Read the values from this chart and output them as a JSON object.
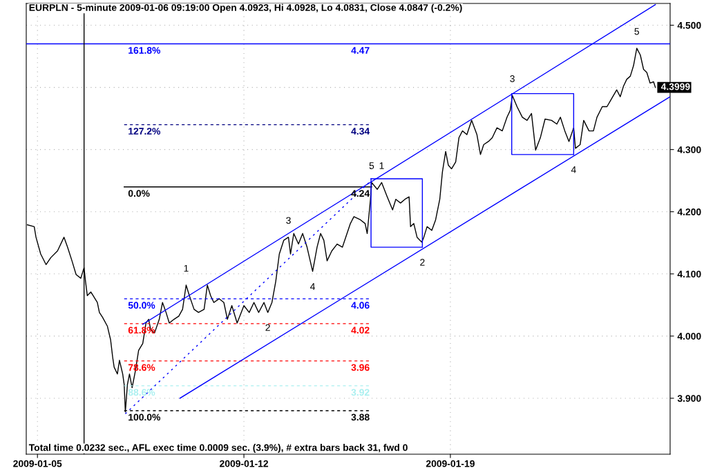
{
  "chart_data": {
    "type": "line",
    "title": "EURPLN - 5-minute 2009-01-06 09:19:00 Open 4.0923, Hi 4.0928, Lo 4.0831, Close 4.0847 (-0.2%)",
    "annotations": [
      "Total time 0.0232 sec., AFL exec time 0.0009 sec. (3.9%), # extra bars back 31, fwd 0",
      {
        "text": "1",
        "x": "2009-01-10T00:58",
        "y": 4.082
      },
      {
        "text": "2",
        "x": "2009-01-12T19:26",
        "y": 4.038
      },
      {
        "text": "3",
        "x": "2009-01-13T12:14",
        "y": 4.159
      },
      {
        "text": "4",
        "x": "2009-01-14T07:55",
        "y": 4.104
      },
      {
        "text": "5",
        "x": "2009-01-16T07:55",
        "y": 4.247
      },
      {
        "text": "1",
        "x": "2009-01-16T16:05",
        "y": 4.247
      },
      {
        "text": "2",
        "x": "2009-01-18T01:12",
        "y": 4.143
      },
      {
        "text": "3",
        "x": "2009-01-21T02:24",
        "y": 4.387
      },
      {
        "text": "4",
        "x": "2009-01-23T04:19",
        "y": 4.292
      },
      {
        "text": "5",
        "x": "2009-01-25T07:41",
        "y": 4.463
      }
    ],
    "xlim": [
      "2009-01-04T14:53",
      "2009-01-26T10:48"
    ],
    "ylim": [
      3.81,
      4.535
    ],
    "xticks": [
      "2009-01-05",
      "2009-01-12",
      "2009-01-19"
    ],
    "yticks": [
      {
        "value": 3.9,
        "label": "3.900"
      },
      {
        "value": 4.0,
        "label": "4.000"
      },
      {
        "value": 4.1,
        "label": "4.100"
      },
      {
        "value": 4.2,
        "label": "4.200"
      },
      {
        "value": 4.3,
        "label": "4.300"
      },
      {
        "value": 4.4,
        "label": null
      },
      {
        "value": 4.5,
        "label": "4.500"
      }
    ],
    "grid": true,
    "marker": "none",
    "line_style": "solid",
    "ref_lines": [
      {
        "axis": "x",
        "value": "2009-01-06T13:55",
        "color": "#000000"
      }
    ],
    "series": [
      {
        "color": "#000000",
        "x": [
          "2009-01-04T15:50",
          "2009-01-04T21:22",
          "2009-01-04T22:48",
          "2009-01-05T02:38",
          "2009-01-05T06:58",
          "2009-01-05T10:48",
          "2009-01-05T16:19",
          "2009-01-05T21:36",
          "2009-01-06T00:29",
          "2009-01-06T04:05",
          "2009-01-06T07:26",
          "2009-01-06T11:17",
          "2009-01-06T13:55",
          "2009-01-06T15:07",
          "2009-01-06T16:34",
          "2009-01-06T19:26",
          "2009-01-07T00:43",
          "2009-01-07T02:24",
          "2009-01-07T05:02",
          "2009-01-07T08:53",
          "2009-01-07T11:31",
          "2009-01-07T13:12",
          "2009-01-07T14:24",
          "2009-01-07T17:02",
          "2009-01-07T18:43",
          "2009-01-07T21:22",
          "2009-01-07T22:34",
          "2009-01-07T23:31",
          "2009-01-08T01:12",
          "2009-01-08T02:53",
          "2009-01-08T05:02",
          "2009-01-08T07:41",
          "2009-01-08T10:19",
          "2009-01-08T13:41",
          "2009-01-08T16:19",
          "2009-01-08T18:29",
          "2009-01-08T20:10",
          "2009-01-08T23:17",
          "2009-01-09T03:07",
          "2009-01-09T05:46",
          "2009-01-09T08:38",
          "2009-01-09T11:17",
          "2009-01-09T15:07",
          "2009-01-09T18:58",
          "2009-01-09T22:05",
          "2009-01-10T00:58",
          "2009-01-10T03:36",
          "2009-01-10T07:26",
          "2009-01-10T11:02",
          "2009-01-10T15:36",
          "2009-01-10T18:14",
          "2009-01-10T20:53",
          "2009-01-10T23:31",
          "2009-01-11T03:50",
          "2009-01-11T07:41",
          "2009-01-11T10:34",
          "2009-01-11T14:10",
          "2009-01-11T18:29",
          "2009-01-12T00:00",
          "2009-01-12T04:19",
          "2009-01-12T08:10",
          "2009-01-12T12:00",
          "2009-01-12T16:19",
          "2009-01-12T19:26",
          "2009-01-12T22:48",
          "2009-01-13T01:55",
          "2009-01-13T04:48",
          "2009-01-13T08:24",
          "2009-01-13T12:14",
          "2009-01-13T13:55",
          "2009-01-13T16:34",
          "2009-01-13T20:24",
          "2009-01-13T23:46",
          "2009-01-14T03:22",
          "2009-01-14T07:55",
          "2009-01-14T11:31",
          "2009-01-14T14:24",
          "2009-01-14T17:02",
          "2009-01-14T19:41",
          "2009-01-14T23:31",
          "2009-01-15T03:50",
          "2009-01-15T08:10",
          "2009-01-15T14:38",
          "2009-01-15T17:31",
          "2009-01-15T22:48",
          "2009-01-16T02:38",
          "2009-01-16T04:19",
          "2009-01-16T06:58",
          "2009-01-16T07:55",
          "2009-01-16T12:29",
          "2009-01-16T16:05",
          "2009-01-16T20:24",
          "2009-01-17T00:58",
          "2009-01-17T03:36",
          "2009-01-17T07:26",
          "2009-01-17T11:02",
          "2009-01-17T14:24",
          "2009-01-17T15:36",
          "2009-01-17T18:14",
          "2009-01-17T20:53",
          "2009-01-18T00:43",
          "2009-01-18T02:24",
          "2009-01-18T05:02",
          "2009-01-18T08:53",
          "2009-01-18T12:00",
          "2009-01-18T15:22",
          "2009-01-18T17:31",
          "2009-01-18T20:10",
          "2009-01-18T22:19",
          "2009-01-19T00:58",
          "2009-01-19T04:19",
          "2009-01-19T06:58",
          "2009-01-19T09:50",
          "2009-01-19T13:26",
          "2009-01-19T17:17",
          "2009-01-19T21:36",
          "2009-01-20T00:29",
          "2009-01-20T03:07",
          "2009-01-20T06:58",
          "2009-01-20T10:05",
          "2009-01-20T13:55",
          "2009-01-20T18:14",
          "2009-01-20T22:05",
          "2009-01-21T00:43",
          "2009-01-21T02:24",
          "2009-01-21T06:14",
          "2009-01-21T10:34",
          "2009-01-21T14:24",
          "2009-01-21T18:00",
          "2009-01-21T21:22",
          "2009-01-22T01:12",
          "2009-01-22T05:02",
          "2009-01-22T10:19",
          "2009-01-22T14:38",
          "2009-01-22T17:31",
          "2009-01-22T21:07",
          "2009-01-23T00:29",
          "2009-01-23T04:19",
          "2009-01-23T05:46",
          "2009-01-23T09:36",
          "2009-01-23T12:29",
          "2009-01-23T16:48",
          "2009-01-23T20:24",
          "2009-01-23T23:17",
          "2009-01-24T03:36",
          "2009-01-24T07:26",
          "2009-01-24T10:05",
          "2009-01-24T15:22",
          "2009-01-24T18:14",
          "2009-01-24T20:53",
          "2009-01-24T23:31",
          "2009-01-25T02:24",
          "2009-01-25T05:02",
          "2009-01-25T07:41",
          "2009-01-25T10:34",
          "2009-01-25T13:12",
          "2009-01-25T15:50",
          "2009-01-25T18:29",
          "2009-01-25T21:22",
          "2009-01-25T22:48"
        ],
        "values": [
          4.179,
          4.176,
          4.159,
          4.132,
          4.115,
          4.126,
          4.137,
          4.159,
          4.143,
          4.121,
          4.099,
          4.093,
          4.11,
          4.088,
          4.065,
          4.071,
          4.054,
          4.038,
          4.03,
          4.016,
          3.994,
          3.966,
          3.95,
          3.939,
          3.961,
          3.939,
          3.922,
          3.878,
          3.922,
          3.939,
          3.917,
          3.944,
          3.977,
          3.988,
          4.021,
          4.027,
          4.01,
          4.005,
          4.027,
          4.054,
          4.038,
          4.021,
          4.027,
          4.032,
          4.043,
          4.082,
          4.065,
          4.043,
          4.038,
          4.043,
          4.082,
          4.065,
          4.054,
          4.06,
          4.054,
          4.027,
          4.049,
          4.021,
          4.049,
          4.038,
          4.054,
          4.038,
          4.054,
          4.038,
          4.054,
          4.088,
          4.132,
          4.154,
          4.159,
          4.132,
          4.165,
          4.148,
          4.165,
          4.143,
          4.104,
          4.143,
          4.165,
          4.154,
          4.121,
          4.137,
          4.148,
          4.143,
          4.181,
          4.192,
          4.187,
          4.181,
          4.165,
          4.22,
          4.247,
          4.236,
          4.247,
          4.225,
          4.203,
          4.22,
          4.214,
          4.22,
          4.224,
          4.176,
          4.181,
          4.159,
          4.151,
          4.159,
          4.176,
          4.17,
          4.187,
          4.22,
          4.264,
          4.297,
          4.275,
          4.269,
          4.28,
          4.319,
          4.33,
          4.324,
          4.347,
          4.324,
          4.292,
          4.308,
          4.313,
          4.319,
          4.335,
          4.33,
          4.352,
          4.363,
          4.387,
          4.369,
          4.352,
          4.347,
          4.358,
          4.299,
          4.319,
          4.349,
          4.347,
          4.341,
          4.352,
          4.33,
          4.313,
          4.335,
          4.302,
          4.308,
          4.347,
          4.33,
          4.33,
          4.352,
          4.369,
          4.369,
          4.378,
          4.396,
          4.385,
          4.402,
          4.413,
          4.418,
          4.435,
          4.463,
          4.452,
          4.429,
          4.424,
          4.407,
          4.409,
          4.3999
        ],
        "value_labels": [
          null,
          null,
          null,
          null,
          null,
          null,
          null,
          null,
          null,
          null,
          null,
          null,
          null,
          null,
          null,
          null,
          null,
          null,
          null,
          null,
          null,
          null,
          null,
          null,
          null,
          null,
          null,
          null,
          null,
          null,
          null,
          null,
          null,
          null,
          null,
          null,
          null,
          null,
          null,
          null,
          null,
          null,
          null,
          null,
          null,
          null,
          null,
          null,
          null,
          null,
          null,
          null,
          null,
          null,
          null,
          null,
          null,
          null,
          null,
          null,
          null,
          null,
          null,
          null,
          null,
          null,
          null,
          null,
          null,
          null,
          null,
          null,
          null,
          null,
          null,
          null,
          null,
          null,
          null,
          null,
          null,
          null,
          null,
          null,
          null,
          null,
          null,
          null,
          null,
          null,
          null,
          null,
          null,
          null,
          null,
          null,
          null,
          null,
          null,
          null,
          null,
          null,
          null,
          null,
          null,
          null,
          null,
          null,
          null,
          null,
          null,
          null,
          null,
          null,
          null,
          null,
          null,
          null,
          null,
          null,
          null,
          null,
          null,
          null,
          null,
          null,
          null,
          null,
          null,
          null,
          null,
          null,
          null,
          null,
          null,
          null,
          null,
          null,
          null,
          null,
          null,
          null,
          null,
          null,
          null,
          null,
          null,
          null,
          null,
          null,
          null,
          null,
          null,
          null,
          null,
          null,
          null,
          null,
          null,
          "4.3999"
        ]
      },
      {
        "name": "161.8%",
        "color": "#0000ff",
        "x": [
          "2009-01-04T14:53",
          "2009-01-07T22:34",
          "2009-01-16T07:55",
          "2009-01-26T10:48"
        ],
        "values": [
          4.47,
          4.47,
          4.47,
          4.47
        ],
        "value_labels": [
          null,
          null,
          "4.47",
          null
        ]
      },
      {
        "name": "127.2%",
        "color": "#000080",
        "line_style": "dashed",
        "x": [
          "2009-01-07T22:34",
          "2009-01-16T07:55"
        ],
        "values": [
          4.34,
          4.34
        ],
        "value_labels": [
          null,
          "4.34"
        ]
      },
      {
        "name": "0.0%",
        "color": "#000000",
        "x": [
          "2009-01-07T22:34",
          "2009-01-16T07:55"
        ],
        "values": [
          4.24,
          4.24
        ],
        "value_labels": [
          null,
          "4.24"
        ]
      },
      {
        "name": "50.0%",
        "color": "#0000ff",
        "line_style": "dashed",
        "x": [
          "2009-01-07T22:34",
          "2009-01-16T07:55"
        ],
        "values": [
          4.06,
          4.06
        ],
        "value_labels": [
          null,
          "4.06"
        ]
      },
      {
        "name": "61.8%",
        "color": "#ff0000",
        "line_style": "dashed",
        "x": [
          "2009-01-07T22:34",
          "2009-01-16T07:55"
        ],
        "values": [
          4.02,
          4.02
        ],
        "value_labels": [
          null,
          "4.02"
        ]
      },
      {
        "name": "78.6%",
        "color": "#ff0000",
        "line_style": "dashed",
        "x": [
          "2009-01-07T22:34",
          "2009-01-16T07:55"
        ],
        "values": [
          3.96,
          3.96
        ],
        "value_labels": [
          null,
          "3.96"
        ]
      },
      {
        "name": "88.6%",
        "color": "#aaf0f0",
        "line_style": "dashed",
        "x": [
          "2009-01-07T22:34",
          "2009-01-16T07:55"
        ],
        "values": [
          3.92,
          3.92
        ],
        "value_labels": [
          null,
          "3.92"
        ]
      },
      {
        "name": "100.0%",
        "color": "#000000",
        "line_style": "dashed",
        "x": [
          "2009-01-07T22:34",
          "2009-01-16T07:55"
        ],
        "values": [
          3.88,
          3.88
        ],
        "value_labels": [
          null,
          "3.88"
        ]
      },
      {
        "color": "#0000ff",
        "x": [
          "2009-01-08T13:41",
          "2009-01-25T22:48"
        ],
        "values": [
          4.019,
          4.533
        ]
      },
      {
        "color": "#0000ff",
        "x": [
          "2009-01-09T19:55",
          "2009-01-26T10:48"
        ],
        "values": [
          3.9,
          4.385
        ]
      },
      {
        "color": "#0000ff",
        "line_style": "dotted",
        "x": [
          "2009-01-07T23:31",
          "2009-01-16T07:55"
        ],
        "values": [
          3.875,
          4.251
        ]
      },
      {
        "color": "#0000ff",
        "x": [
          "2009-01-16T07:26",
          "2009-01-18T01:12",
          "2009-01-18T01:12"
        ],
        "values": [
          4.253,
          4.253,
          4.143
        ]
      },
      {
        "color": "#0000ff",
        "x": [
          "2009-01-16T07:26",
          "2009-01-16T07:26",
          "2009-01-18T01:12"
        ],
        "values": [
          4.253,
          4.143,
          4.143
        ]
      },
      {
        "color": "#0000ff",
        "x": [
          "2009-01-21T01:55",
          "2009-01-23T04:19",
          "2009-01-23T04:19"
        ],
        "values": [
          4.39,
          4.39,
          4.292
        ]
      },
      {
        "color": "#0000ff",
        "x": [
          "2009-01-21T01:55",
          "2009-01-21T01:55",
          "2009-01-23T04:19"
        ],
        "values": [
          4.39,
          4.292,
          4.292
        ]
      }
    ]
  }
}
